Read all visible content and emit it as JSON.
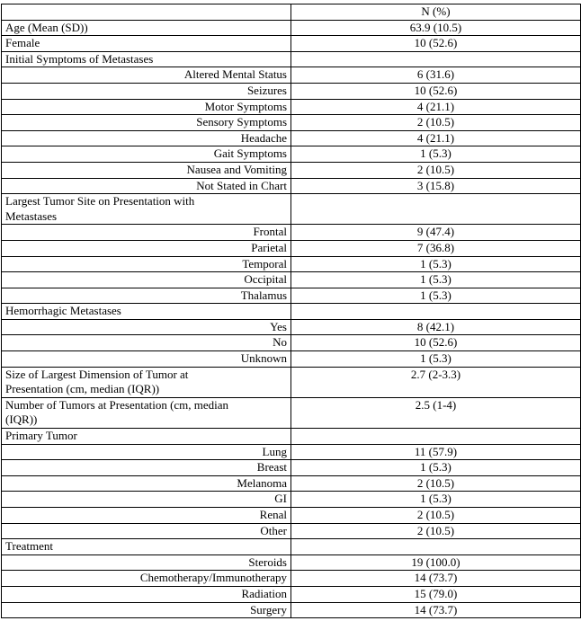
{
  "colors": {
    "background": "#ffffff",
    "border": "#000000",
    "text": "#000000"
  },
  "table": {
    "header": {
      "characteristic": "",
      "n_percent": "N (%)"
    },
    "rows": [
      {
        "label": "Age (Mean (SD))",
        "value": "63.9 (10.5)",
        "align": "left"
      },
      {
        "label": "Female",
        "value": "10 (52.6)",
        "align": "left"
      },
      {
        "label": "Initial Symptoms of Metastases",
        "value": "",
        "align": "left"
      },
      {
        "label": "Altered Mental Status",
        "value": "6 (31.6)",
        "align": "right"
      },
      {
        "label": "Seizures",
        "value": "10 (52.6)",
        "align": "right"
      },
      {
        "label": "Motor Symptoms",
        "value": "4 (21.1)",
        "align": "right"
      },
      {
        "label": "Sensory Symptoms",
        "value": "2 (10.5)",
        "align": "right"
      },
      {
        "label": "Headache",
        "value": "4 (21.1)",
        "align": "right"
      },
      {
        "label": "Gait Symptoms",
        "value": "1 (5.3)",
        "align": "right"
      },
      {
        "label": "Nausea and Vomiting",
        "value": "2 (10.5)",
        "align": "right"
      },
      {
        "label": "Not Stated in Chart",
        "value": "3 (15.8)",
        "align": "right"
      },
      {
        "label": "Largest Tumor Site on Presentation with\nMetastases",
        "value": "",
        "align": "left"
      },
      {
        "label": "Frontal",
        "value": "9 (47.4)",
        "align": "right"
      },
      {
        "label": "Parietal",
        "value": "7 (36.8)",
        "align": "right"
      },
      {
        "label": "Temporal",
        "value": "1 (5.3)",
        "align": "right"
      },
      {
        "label": "Occipital",
        "value": "1 (5.3)",
        "align": "right"
      },
      {
        "label": "Thalamus",
        "value": "1 (5.3)",
        "align": "right"
      },
      {
        "label": "Hemorrhagic Metastases",
        "value": "",
        "align": "left"
      },
      {
        "label": "Yes",
        "value": "8 (42.1)",
        "align": "right"
      },
      {
        "label": "No",
        "value": "10 (52.6)",
        "align": "right"
      },
      {
        "label": "Unknown",
        "value": "1 (5.3)",
        "align": "right"
      },
      {
        "label": "Size of Largest Dimension of Tumor at\nPresentation (cm, median (IQR))",
        "value": "2.7 (2-3.3)",
        "align": "left"
      },
      {
        "label": "Number of Tumors at Presentation (cm, median\n(IQR))",
        "value": "2.5 (1-4)",
        "align": "left"
      },
      {
        "label": "Primary Tumor",
        "value": "",
        "align": "left"
      },
      {
        "label": "Lung",
        "value": "11 (57.9)",
        "align": "right"
      },
      {
        "label": "Breast",
        "value": "1 (5.3)",
        "align": "right"
      },
      {
        "label": "Melanoma",
        "value": "2 (10.5)",
        "align": "right"
      },
      {
        "label": "GI",
        "value": "1 (5.3)",
        "align": "right"
      },
      {
        "label": "Renal",
        "value": "2 (10.5)",
        "align": "right"
      },
      {
        "label": "Other",
        "value": "2 (10.5)",
        "align": "right"
      },
      {
        "label": "Treatment",
        "value": "",
        "align": "left"
      },
      {
        "label": "Steroids",
        "value": "19 (100.0)",
        "align": "right"
      },
      {
        "label": "Chemotherapy/Immunotherapy",
        "value": "14 (73.7)",
        "align": "right"
      },
      {
        "label": "Radiation",
        "value": "15 (79.0)",
        "align": "right"
      },
      {
        "label": "Surgery",
        "value": "14 (73.7)",
        "align": "right"
      }
    ]
  }
}
